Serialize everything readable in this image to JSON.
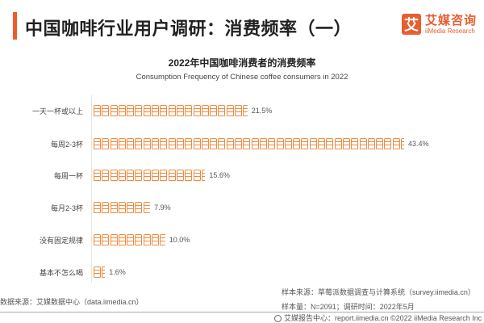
{
  "header": {
    "title": "中国咖啡行业用户调研：消费频率（一）",
    "accent_color": "#f15a2b"
  },
  "logo": {
    "mark": "艾",
    "name_cn": "艾媒咨询",
    "name_en": "iiMedia Research",
    "color": "#e95d2f"
  },
  "chart_data": {
    "type": "bar",
    "orientation": "horizontal",
    "style": "pictogram (coffee cup icons)",
    "title": "2022年中国咖啡消费者的消费频率",
    "subtitle": "Consumption Frequency of Chinese coffee consumers in 2022",
    "categories": [
      "一天一杯或以上",
      "每周2-3杯",
      "每周一杯",
      "每月2-3杯",
      "没有固定规律",
      "基本不怎么喝"
    ],
    "values": [
      21.5,
      43.4,
      15.6,
      7.9,
      10.0,
      1.6
    ],
    "value_labels": [
      "21.5%",
      "43.4%",
      "15.6%",
      "7.9%",
      "10.0%",
      "1.6%"
    ],
    "unit": "%",
    "bar_color": "#f08a3e",
    "xlabel": "",
    "ylabel": "",
    "grid": false
  },
  "rows": [
    {
      "label": "一天一杯或以上",
      "value": "21.5%"
    },
    {
      "label": "每周2-3杯",
      "value": "43.4%"
    },
    {
      "label": "每周一杯",
      "value": "15.6%"
    },
    {
      "label": "每月2-3杯",
      "value": "7.9%"
    },
    {
      "label": "没有固定规律",
      "value": "10.0%"
    },
    {
      "label": "基本不怎么喝",
      "value": "1.6%"
    }
  ],
  "sources": {
    "data_source": "数据来源：艾媒数据中心（data.iimedia.cn）",
    "sample_source": "样本来源：草莓派数据调查与计算系统（survey.iimedia.cn）",
    "sample_info": "样本量：N=2091；调研时间：2022年5月"
  },
  "footer": {
    "text": "艾媒报告中心：report.iimedia.cn  ©2022  iiMedia Research Inc"
  }
}
